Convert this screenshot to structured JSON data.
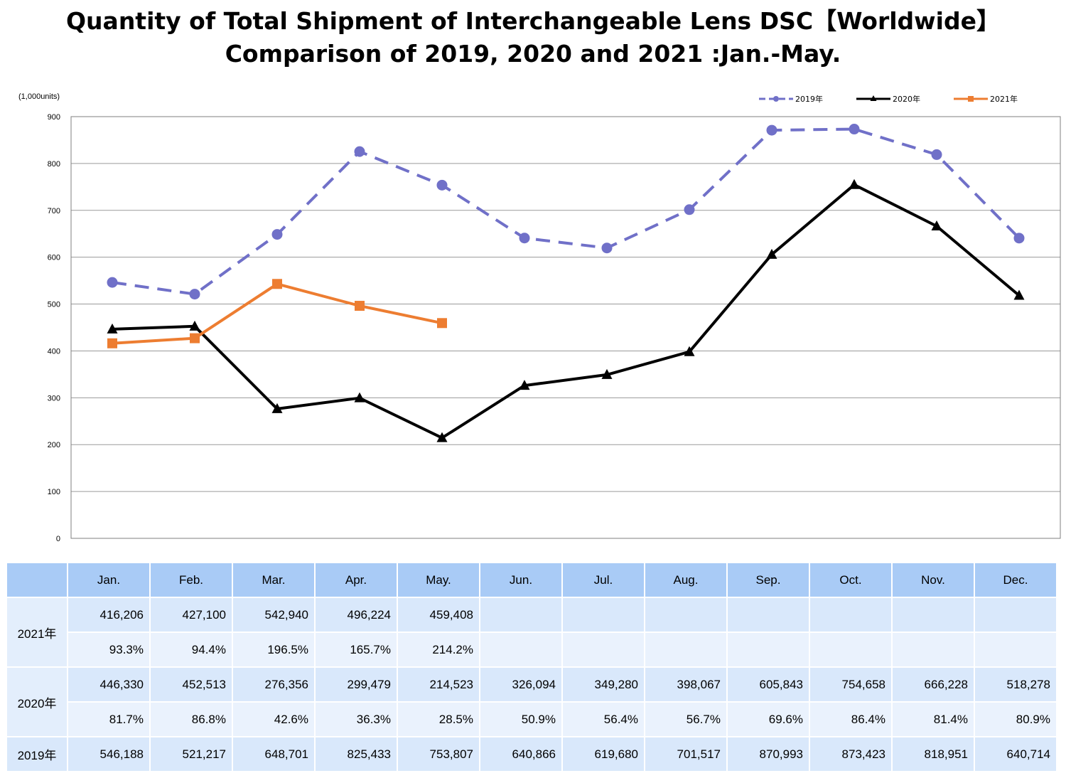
{
  "title_line1": "Quantity of Total Shipment of Interchangeable Lens DSC【Worldwide】",
  "title_line2": "Comparison of 2019, 2020 and 2021 :Jan.-May.",
  "unit_label": "(1,000units)",
  "chart_data": {
    "type": "line",
    "categories": [
      "Jan.",
      "Feb.",
      "Mar.",
      "Apr.",
      "May.",
      "Jun.",
      "Jul.",
      "Aug.",
      "Sep.",
      "Oct.",
      "Nov.",
      "Dec."
    ],
    "ylim": [
      0,
      900
    ],
    "yticks": [
      0,
      100,
      200,
      300,
      400,
      500,
      600,
      700,
      800,
      900
    ],
    "grid": true,
    "legend_position": "top-right",
    "series": [
      {
        "name": "2019年",
        "color": "#7070c8",
        "style": "dashed",
        "marker": "circle",
        "values": [
          546.188,
          521.217,
          648.701,
          825.433,
          753.807,
          640.866,
          619.68,
          701.517,
          870.993,
          873.423,
          818.951,
          640.714
        ]
      },
      {
        "name": "2020年",
        "color": "#000000",
        "style": "solid",
        "marker": "triangle",
        "values": [
          446.33,
          452.513,
          276.356,
          299.479,
          214.523,
          326.094,
          349.28,
          398.067,
          605.843,
          754.658,
          666.228,
          518.278
        ]
      },
      {
        "name": "2021年",
        "color": "#ed7d31",
        "style": "solid",
        "marker": "square",
        "values": [
          416.206,
          427.1,
          542.94,
          496.224,
          459.408,
          null,
          null,
          null,
          null,
          null,
          null,
          null
        ]
      }
    ]
  },
  "table": {
    "months": [
      "Jan.",
      "Feb.",
      "Mar.",
      "Apr.",
      "May.",
      "Jun.",
      "Jul.",
      "Aug.",
      "Sep.",
      "Oct.",
      "Nov.",
      "Dec."
    ],
    "rows": [
      {
        "label": "2021年",
        "units": [
          "416,206",
          "427,100",
          "542,940",
          "496,224",
          "459,408",
          "",
          "",
          "",
          "",
          "",
          "",
          ""
        ],
        "pct": [
          "93.3%",
          "94.4%",
          "196.5%",
          "165.7%",
          "214.2%",
          "",
          "",
          "",
          "",
          "",
          "",
          ""
        ]
      },
      {
        "label": "2020年",
        "units": [
          "446,330",
          "452,513",
          "276,356",
          "299,479",
          "214,523",
          "326,094",
          "349,280",
          "398,067",
          "605,843",
          "754,658",
          "666,228",
          "518,278"
        ],
        "pct": [
          "81.7%",
          "86.8%",
          "42.6%",
          "36.3%",
          "28.5%",
          "50.9%",
          "56.4%",
          "56.7%",
          "69.6%",
          "86.4%",
          "81.4%",
          "80.9%"
        ]
      },
      {
        "label": "2019年",
        "units": [
          "546,188",
          "521,217",
          "648,701",
          "825,433",
          "753,807",
          "640,866",
          "619,680",
          "701,517",
          "870,993",
          "873,423",
          "818,951",
          "640,714"
        ]
      }
    ]
  }
}
